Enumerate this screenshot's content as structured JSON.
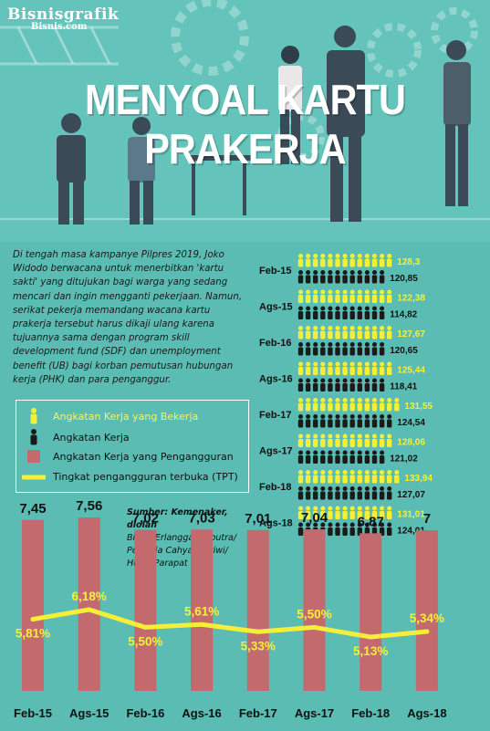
{
  "brand": {
    "name": "Bisnisgrafik",
    "site": "Bisnis.com"
  },
  "title": "MENYOAL KARTU PRAKERJA",
  "intro": "Di tengah masa kampanye Pilpres 2019, Joko Widodo berwacana untuk menerbitkan 'kartu sakti' yang ditujukan bagi warga yang sedang mencari dan ingin mengganti pekerjaan. Namun, serikat pekerja memandang wacana kartu prakerja tersebut harus dikaji ulang karena tujuannya sama dengan program skill development fund (SDF) dan unemployment benefit (UB) bagi korban pemutusan hubungan kerja (PHK) dan para penganggur.",
  "legend": {
    "employed": "Angkatan Kerja yang Bekerja",
    "labor_force": "Angkatan Kerja",
    "unemployed": "Angkatan Kerja yang Pengangguran",
    "tpt": "Tingkat pengangguran terbuka (TPT)"
  },
  "source": {
    "line1": "Sumber: Kemenaker, diolah",
    "line2": "Bisnis/Erlangga Adiputra/ Pertricia Cahya Pratiwi/ Husin Parapat"
  },
  "colors": {
    "background": "#5bbcb3",
    "bar": "#c26a6e",
    "line": "#f5f037",
    "employed_icon": "#f5f037",
    "labor_icon": "#1a1a1a"
  },
  "chart_data": [
    {
      "type": "bar",
      "categories": [
        "Feb-15",
        "Ags-15",
        "Feb-16",
        "Ags-16",
        "Feb-17",
        "Ags-17",
        "Feb-18",
        "Ags-18"
      ],
      "series": [
        {
          "name": "Angkatan Kerja yang Pengangguran",
          "values": [
            7.45,
            7.56,
            7.02,
            7.03,
            7.01,
            7.04,
            6.87,
            7.0
          ],
          "labels": [
            "7,45",
            "7,56",
            "7,02",
            "7,03",
            "7,01",
            "7,04",
            "6,87",
            "7"
          ]
        },
        {
          "name": "Tingkat pengangguran terbuka (TPT)",
          "type": "line",
          "values": [
            5.81,
            6.18,
            5.5,
            5.61,
            5.33,
            5.5,
            5.13,
            5.34
          ],
          "labels": [
            "5,81%",
            "6,18%",
            "5,50%",
            "5,61%",
            "5,33%",
            "5,50%",
            "5,13%",
            "5,34%"
          ]
        }
      ]
    },
    {
      "type": "bar",
      "categories": [
        "Feb-15",
        "Ags-15",
        "Feb-16",
        "Ags-16",
        "Feb-17",
        "Ags-17",
        "Feb-18",
        "Ags-18"
      ],
      "series": [
        {
          "name": "Angkatan Kerja yang Bekerja",
          "values": [
            128.3,
            122.38,
            127.67,
            125.44,
            131.55,
            128.06,
            133.94,
            131.01
          ],
          "labels": [
            "128,3",
            "122,38",
            "127,67",
            "125,44",
            "131,55",
            "128,06",
            "133,94",
            "131,01"
          ]
        },
        {
          "name": "Angkatan Kerja",
          "values": [
            120.85,
            114.82,
            120.65,
            118.41,
            124.54,
            121.02,
            127.07,
            124.01
          ],
          "labels": [
            "120,85",
            "114,82",
            "120,65",
            "118,41",
            "124,54",
            "121,02",
            "127,07",
            "124,01"
          ]
        }
      ]
    }
  ]
}
